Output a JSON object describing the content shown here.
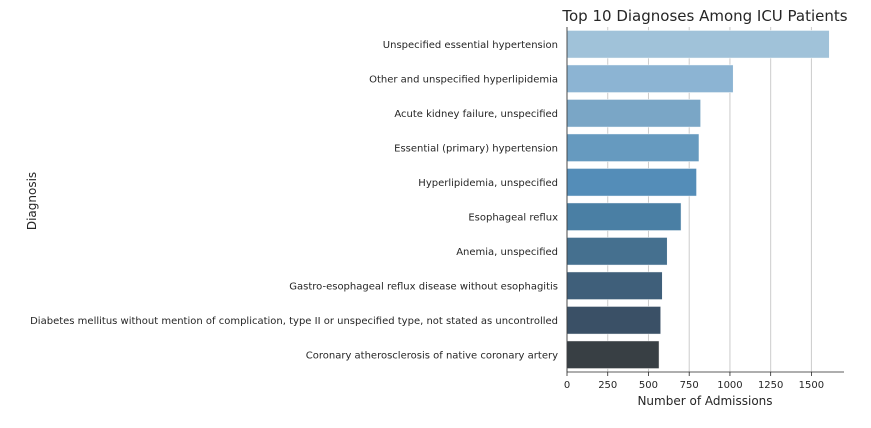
{
  "chart_data": {
    "type": "bar",
    "orientation": "horizontal",
    "title": "Top 10 Diagnoses Among ICU Patients",
    "xlabel": "Number of Admissions",
    "ylabel": "Diagnosis",
    "xlim": [
      0,
      1700
    ],
    "x_ticks": [
      "0",
      "250",
      "500",
      "750",
      "1000",
      "1250",
      "1500"
    ],
    "grid": "vertical",
    "categories": [
      "Unspecified essential hypertension",
      "Other and unspecified hyperlipidemia",
      "Acute kidney failure, unspecified",
      "Essential (primary) hypertension",
      "Hyperlipidemia, unspecified",
      "Esophageal reflux",
      "Anemia, unspecified",
      "Gastro-esophageal reflux disease without esophagitis",
      "Diabetes mellitus without mention of complication, type II or unspecified type, not stated as uncontrolled",
      "Coronary atherosclerosis of native coronary artery"
    ],
    "values": [
      1610,
      1020,
      820,
      810,
      795,
      700,
      615,
      585,
      575,
      565
    ],
    "colors": [
      "#a0c2d9",
      "#8cb4d3",
      "#7aa6c6",
      "#669abf",
      "#548db8",
      "#4a7fa4",
      "#45708f",
      "#3f5f7a",
      "#3a5066",
      "#383f44"
    ]
  }
}
